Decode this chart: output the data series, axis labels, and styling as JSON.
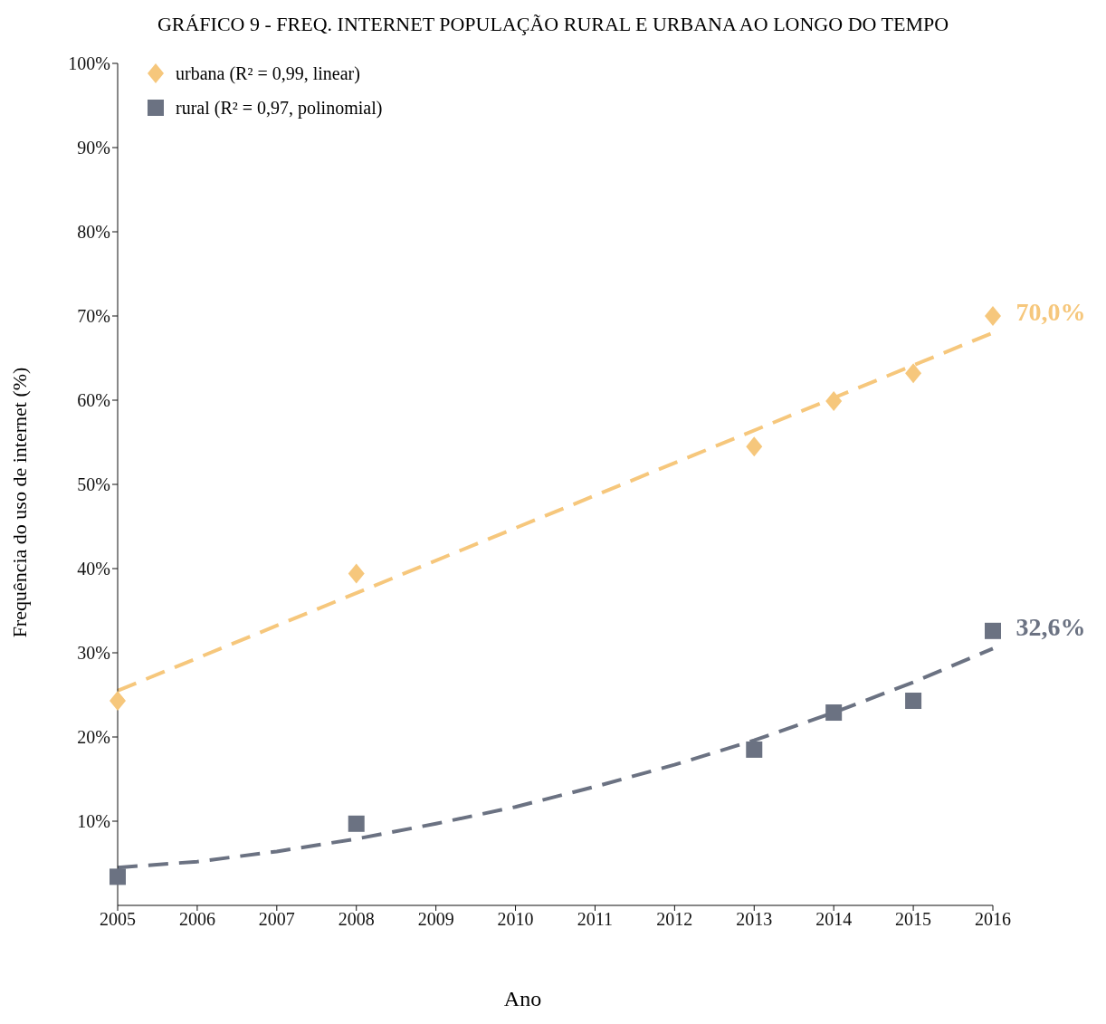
{
  "chart_data": {
    "type": "scatter",
    "title": "GRÁFICO 9 - FREQ. INTERNET POPULAÇÃO RURAL E URBANA AO LONGO DO TEMPO",
    "xlabel": "Ano",
    "ylabel": "Frequência do uso de internet (%)",
    "xlim": [
      2005,
      2016
    ],
    "xticks": [
      2005,
      2006,
      2007,
      2008,
      2009,
      2010,
      2011,
      2012,
      2013,
      2014,
      2015,
      2016
    ],
    "ylim": [
      0,
      100
    ],
    "yticks": [
      {
        "value": 10,
        "label": "10%"
      },
      {
        "value": 20,
        "label": "20%"
      },
      {
        "value": 30,
        "label": "30%"
      },
      {
        "value": 40,
        "label": "40%"
      },
      {
        "value": 50,
        "label": "50%"
      },
      {
        "value": 60,
        "label": "60%"
      },
      {
        "value": 70,
        "label": "70%"
      },
      {
        "value": 80,
        "label": "80%"
      },
      {
        "value": 90,
        "label": "90%"
      },
      {
        "value": 100,
        "label": "100%"
      }
    ],
    "grid": false,
    "legend": "top left",
    "series": [
      {
        "name": "urbana (R² = 0,99, linear)",
        "marker": "diamond",
        "color": "#f6c77c",
        "x": [
          2005,
          2008,
          2013,
          2014,
          2015,
          2016
        ],
        "values": [
          24.3,
          39.4,
          54.5,
          59.9,
          63.2,
          70.0
        ],
        "value_labels": [
          null,
          null,
          null,
          null,
          null,
          "70,0%"
        ]
      },
      {
        "name": "rural (R² = 0,97, polinomial)",
        "marker": "square",
        "color": "#6b7282",
        "x": [
          2005,
          2008,
          2013,
          2014,
          2015,
          2016
        ],
        "values": [
          3.4,
          9.7,
          18.5,
          22.9,
          24.3,
          32.6
        ],
        "value_labels": [
          null,
          null,
          null,
          null,
          null,
          "32,6%"
        ]
      },
      {
        "type": "line",
        "marker": "none",
        "line_style": "dashed",
        "color": "#f6c77c",
        "x": [
          2005,
          2016
        ],
        "values": [
          25.5,
          68.0
        ]
      },
      {
        "type": "line",
        "marker": "none",
        "line_style": "dashed",
        "color": "#6b7282",
        "x": [
          2005,
          2006,
          2007,
          2008,
          2009,
          2010,
          2011,
          2012,
          2013,
          2014,
          2015,
          2016
        ],
        "values": [
          4.5,
          5.2,
          6.4,
          7.9,
          9.7,
          11.7,
          14.1,
          16.7,
          19.6,
          22.9,
          26.5,
          30.5
        ]
      }
    ]
  }
}
